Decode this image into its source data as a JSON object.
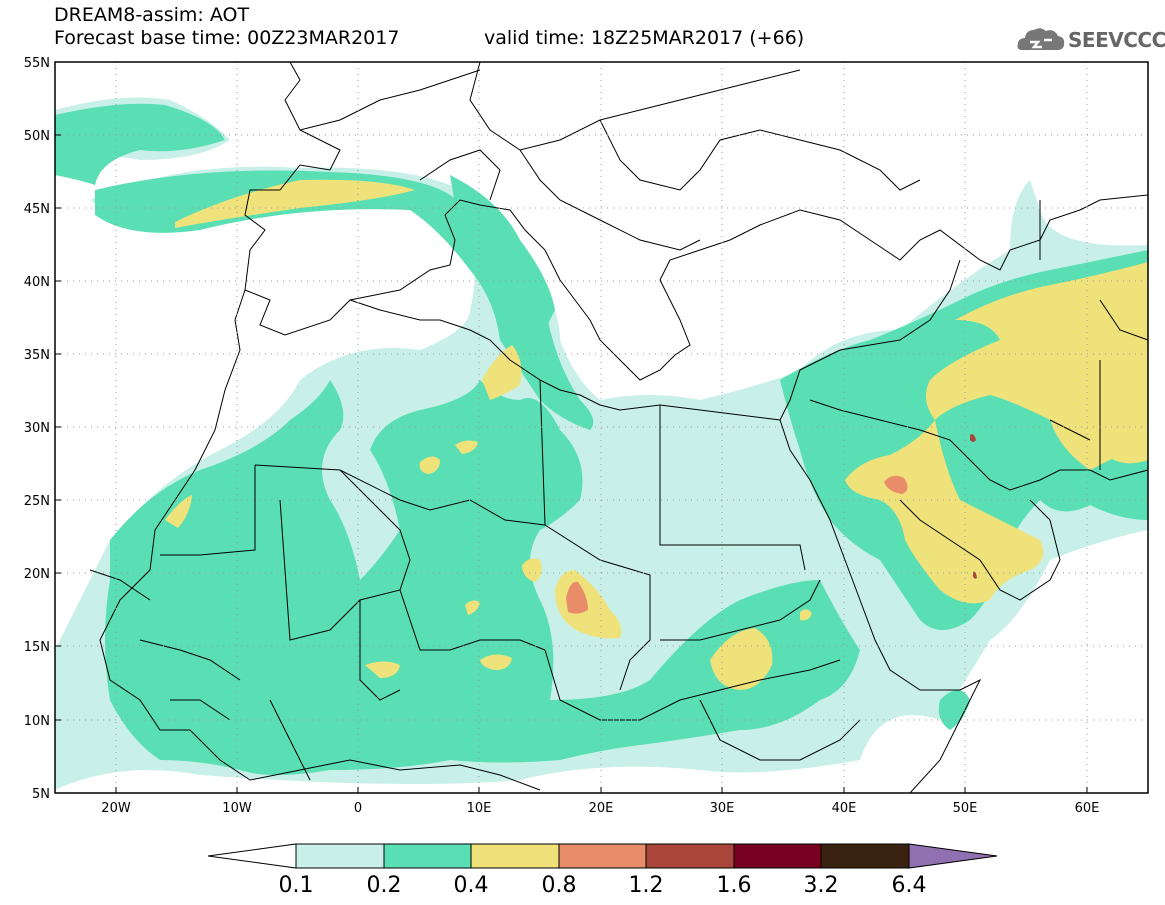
{
  "header": {
    "title": "DREAM8-assim: AOT",
    "base_time": "Forecast base time: 00Z23MAR2017",
    "valid_time": "valid time: 18Z25MAR2017 (+66)"
  },
  "logo": {
    "text": "SEEVCCC",
    "icon": "cloud-icon"
  },
  "axes": {
    "lat_labels": [
      "55N",
      "50N",
      "45N",
      "40N",
      "35N",
      "30N",
      "25N",
      "20N",
      "15N",
      "10N",
      "5N"
    ],
    "lon_labels": [
      "20W",
      "10W",
      "0",
      "10E",
      "20E",
      "30E",
      "40E",
      "50E",
      "60E"
    ],
    "lon_range": [
      -25,
      65
    ],
    "lat_range": [
      5,
      55
    ],
    "grid": "dotted"
  },
  "colorbar": {
    "ticks": [
      "0.1",
      "0.2",
      "0.4",
      "0.8",
      "1.2",
      "1.6",
      "3.2",
      "6.4"
    ],
    "colors": [
      "#c8f0e8",
      "#5ade b4",
      "#f0e27a",
      "#e8a070",
      "#a8463c",
      "#780020",
      "#3a2210",
      "#9070b0"
    ]
  },
  "palette": {
    "c01": "#c8f0e8",
    "c02": "#5adeb4",
    "c04": "#f0e27a",
    "c08": "#e88c6a",
    "c12": "#a8463c"
  }
}
